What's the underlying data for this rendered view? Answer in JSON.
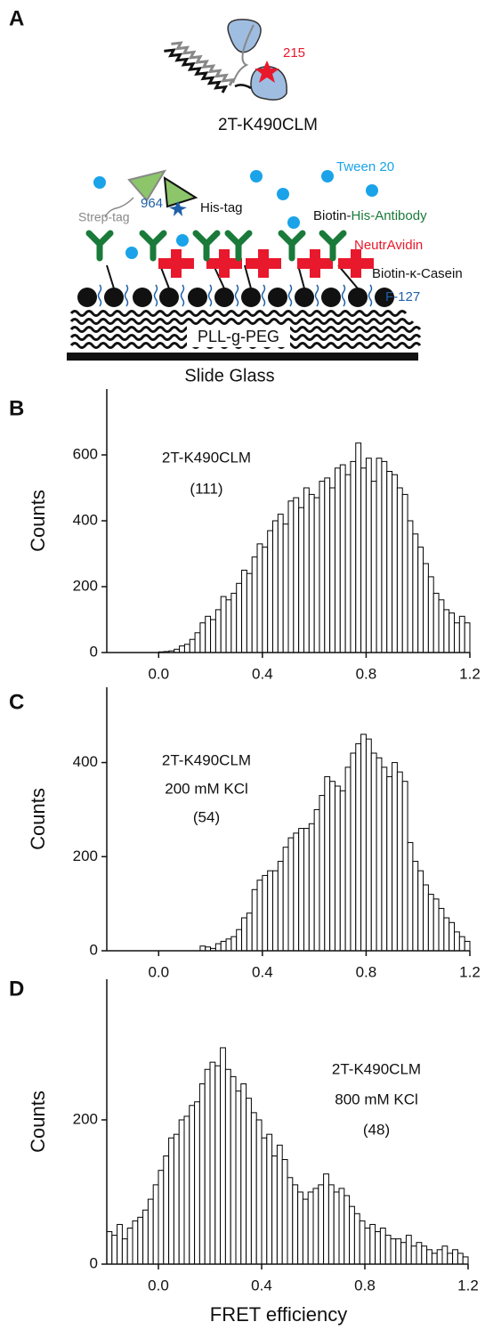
{
  "diagram": {
    "panel_label": "A",
    "dye_acceptor": "215",
    "protein": "2T-K490CLM",
    "tween": "Tween 20",
    "dye_donor": "964",
    "strep_tag": "Strep-tag",
    "his_tag": "His-tag",
    "antibody_prefix": "Biotin-",
    "antibody": "His-Antibody",
    "neutravidin": "NeutrAvidin",
    "casein": "Biotin-κ-Casein",
    "f127": "F-127",
    "peg": "PLL-g-PEG",
    "glass": "Slide Glass"
  },
  "chart_data": [
    {
      "type": "histogram",
      "panel_label": "B",
      "y_label": "Counts",
      "annotations": [
        "2T-K490CLM",
        "(111)"
      ],
      "color": "#ffffff",
      "edgecolor": "#000000",
      "bins": [
        -0.2,
        -0.18,
        -0.16,
        -0.14,
        -0.12,
        -0.1,
        -0.08,
        -0.06,
        -0.04,
        -0.02,
        0,
        0.02,
        0.04,
        0.06,
        0.08,
        0.1,
        0.12,
        0.14,
        0.16,
        0.18,
        0.2,
        0.22,
        0.24,
        0.26,
        0.28,
        0.3,
        0.32,
        0.34,
        0.36,
        0.38,
        0.4,
        0.42,
        0.44,
        0.46,
        0.48,
        0.5,
        0.52,
        0.54,
        0.56,
        0.58,
        0.6,
        0.62,
        0.64,
        0.66,
        0.68,
        0.7,
        0.72,
        0.74,
        0.76,
        0.78,
        0.8,
        0.82,
        0.84,
        0.86,
        0.88,
        0.9,
        0.92,
        0.94,
        0.96,
        0.98,
        1,
        1.02,
        1.04,
        1.06,
        1.08,
        1.1,
        1.12,
        1.14,
        1.16,
        1.18,
        1.2
      ],
      "values": [
        0,
        0,
        0,
        0,
        0,
        0,
        0,
        0,
        0,
        0,
        2,
        3,
        5,
        10,
        20,
        25,
        40,
        60,
        90,
        110,
        100,
        130,
        170,
        160,
        180,
        210,
        250,
        240,
        290,
        330,
        320,
        370,
        400,
        420,
        390,
        460,
        470,
        440,
        500,
        480,
        470,
        520,
        530,
        500,
        560,
        570,
        540,
        580,
        636,
        560,
        590,
        520,
        590,
        580,
        550,
        540,
        500,
        480,
        400,
        360,
        320,
        270,
        230,
        180,
        160,
        130,
        120,
        90,
        110,
        90
      ],
      "xlim": [
        -0.2,
        1.2
      ],
      "xticks": [
        {
          "value": 0,
          "label": "0.0"
        },
        0.4,
        0.8,
        1.2
      ],
      "ylim": [
        0,
        800
      ],
      "yticks": [
        0,
        200,
        400,
        600
      ]
    },
    {
      "type": "histogram",
      "panel_label": "C",
      "y_label": "Counts",
      "annotations": [
        "2T-K490CLM",
        "200 mM KCl",
        "(54)"
      ],
      "color": "#ffffff",
      "edgecolor": "#000000",
      "bins": [
        -0.2,
        -0.18,
        -0.16,
        -0.14,
        -0.12,
        -0.1,
        -0.08,
        -0.06,
        -0.04,
        -0.02,
        0,
        0.02,
        0.04,
        0.06,
        0.08,
        0.1,
        0.12,
        0.14,
        0.16,
        0.18,
        0.2,
        0.22,
        0.24,
        0.26,
        0.28,
        0.3,
        0.32,
        0.34,
        0.36,
        0.38,
        0.4,
        0.42,
        0.44,
        0.46,
        0.48,
        0.5,
        0.52,
        0.54,
        0.56,
        0.58,
        0.6,
        0.62,
        0.64,
        0.66,
        0.68,
        0.7,
        0.72,
        0.74,
        0.76,
        0.78,
        0.8,
        0.82,
        0.84,
        0.86,
        0.88,
        0.9,
        0.92,
        0.94,
        0.96,
        0.98,
        1,
        1.02,
        1.04,
        1.06,
        1.08,
        1.1,
        1.12,
        1.14,
        1.16,
        1.18,
        1.2
      ],
      "values": [
        0,
        0,
        0,
        0,
        0,
        0,
        0,
        0,
        0,
        0,
        0,
        0,
        0,
        0,
        0,
        0,
        0,
        0,
        10,
        8,
        5,
        15,
        20,
        25,
        30,
        45,
        70,
        80,
        130,
        150,
        160,
        170,
        170,
        190,
        220,
        240,
        250,
        260,
        260,
        270,
        300,
        330,
        370,
        360,
        350,
        340,
        390,
        420,
        440,
        460,
        450,
        420,
        410,
        390,
        370,
        400,
        380,
        360,
        230,
        190,
        170,
        140,
        120,
        110,
        90,
        70,
        60,
        40,
        30,
        20
      ],
      "xlim": [
        -0.2,
        1.2
      ],
      "xticks": [
        {
          "value": 0,
          "label": "0.0"
        },
        0.4,
        0.8,
        1.2
      ],
      "ylim": [
        0,
        560
      ],
      "yticks": [
        0,
        200,
        400
      ]
    },
    {
      "type": "histogram",
      "panel_label": "D",
      "y_label": "Counts",
      "x_label": "FRET efficiency",
      "annotations": [
        "2T-K490CLM",
        "800 mM KCl",
        "(48)"
      ],
      "color": "#ffffff",
      "edgecolor": "#000000",
      "bins": [
        -0.2,
        -0.18,
        -0.16,
        -0.14,
        -0.12,
        -0.1,
        -0.08,
        -0.06,
        -0.04,
        -0.02,
        0,
        0.02,
        0.04,
        0.06,
        0.08,
        0.1,
        0.12,
        0.14,
        0.16,
        0.18,
        0.2,
        0.22,
        0.24,
        0.26,
        0.28,
        0.3,
        0.32,
        0.34,
        0.36,
        0.38,
        0.4,
        0.42,
        0.44,
        0.46,
        0.48,
        0.5,
        0.52,
        0.54,
        0.56,
        0.58,
        0.6,
        0.62,
        0.64,
        0.66,
        0.68,
        0.7,
        0.72,
        0.74,
        0.76,
        0.78,
        0.8,
        0.82,
        0.84,
        0.86,
        0.88,
        0.9,
        0.92,
        0.94,
        0.96,
        0.98,
        1,
        1.02,
        1.04,
        1.06,
        1.08,
        1.1,
        1.12,
        1.14,
        1.16,
        1.18,
        1.2
      ],
      "values": [
        45,
        40,
        55,
        35,
        50,
        60,
        65,
        75,
        90,
        110,
        130,
        150,
        175,
        180,
        200,
        205,
        220,
        225,
        250,
        270,
        280,
        275,
        300,
        270,
        260,
        240,
        250,
        230,
        210,
        200,
        175,
        180,
        150,
        165,
        145,
        120,
        110,
        100,
        90,
        100,
        105,
        110,
        125,
        110,
        100,
        105,
        95,
        80,
        70,
        60,
        50,
        55,
        45,
        50,
        40,
        35,
        35,
        30,
        40,
        25,
        30,
        25,
        20,
        15,
        20,
        25,
        15,
        20,
        15,
        10
      ],
      "xlim": [
        -0.2,
        1.2
      ],
      "xticks": [
        {
          "value": 0,
          "label": "0.0"
        },
        0.4,
        0.8,
        1.2
      ],
      "ylim": [
        0,
        395
      ],
      "yticks": [
        0,
        200
      ]
    }
  ]
}
